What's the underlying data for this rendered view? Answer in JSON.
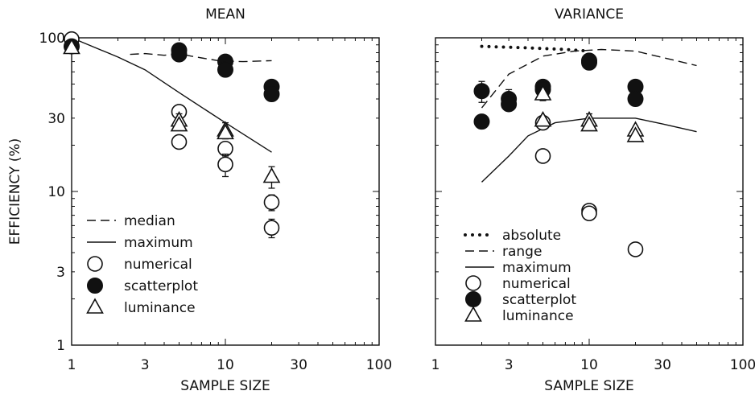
{
  "ylabel": "EFFICIENCY (%)",
  "chart_data": [
    {
      "type": "scatter",
      "title": "MEAN",
      "xlabel": "SAMPLE SIZE",
      "xscale": "log",
      "yscale": "log",
      "xlim": [
        1,
        100
      ],
      "ylim": [
        1,
        100
      ],
      "xticks": [
        "1",
        "3",
        "10",
        "30",
        "100"
      ],
      "yticks": [
        "1",
        "3",
        "10",
        "30",
        "100"
      ],
      "legend_position": "bottom-left",
      "legend": [
        {
          "label": "median",
          "style": "dashed-line"
        },
        {
          "label": "maximum",
          "style": "solid-line"
        },
        {
          "label": "numerical",
          "style": "open-circle"
        },
        {
          "label": "scatterplot",
          "style": "filled-circle"
        },
        {
          "label": "luminance",
          "style": "open-triangle"
        }
      ],
      "lines": [
        {
          "name": "median",
          "style": "dashed",
          "points": [
            [
              2.4,
              78
            ],
            [
              3,
              79
            ],
            [
              4,
              77
            ],
            [
              5,
              79
            ],
            [
              6,
              76
            ],
            [
              7,
              74
            ],
            [
              9,
              71
            ],
            [
              13,
              70
            ],
            [
              20,
              71
            ]
          ]
        },
        {
          "name": "maximum",
          "style": "solid",
          "points": [
            [
              1,
              100
            ],
            [
              2,
              75
            ],
            [
              3,
              62
            ],
            [
              5,
              44
            ],
            [
              10,
              28
            ],
            [
              20,
              18
            ]
          ]
        }
      ],
      "series": [
        {
          "name": "numerical",
          "marker": "open-circle",
          "points": [
            {
              "x": 1,
              "y": 98
            },
            {
              "x": 5,
              "y": 33,
              "err": 2.5
            },
            {
              "x": 5,
              "y": 21,
              "err": 2
            },
            {
              "x": 10,
              "y": 19,
              "err": 2
            },
            {
              "x": 10,
              "y": 15,
              "err": 2.5
            },
            {
              "x": 20,
              "y": 8.5,
              "err": 1
            },
            {
              "x": 20,
              "y": 5.8,
              "err": 0.8
            }
          ]
        },
        {
          "name": "scatterplot",
          "marker": "filled-circle",
          "points": [
            {
              "x": 1,
              "y": 88
            },
            {
              "x": 5,
              "y": 83,
              "err": 3
            },
            {
              "x": 5,
              "y": 78
            },
            {
              "x": 10,
              "y": 70,
              "err": 4
            },
            {
              "x": 10,
              "y": 62,
              "err": 5
            },
            {
              "x": 20,
              "y": 48
            },
            {
              "x": 20,
              "y": 43
            }
          ]
        },
        {
          "name": "luminance",
          "marker": "open-triangle",
          "points": [
            {
              "x": 1,
              "y": 86
            },
            {
              "x": 5,
              "y": 29,
              "err": 3
            },
            {
              "x": 5,
              "y": 27
            },
            {
              "x": 10,
              "y": 25,
              "err": 3
            },
            {
              "x": 10,
              "y": 24
            },
            {
              "x": 20,
              "y": 12.5,
              "err": 2
            }
          ]
        }
      ]
    },
    {
      "type": "scatter",
      "title": "VARIANCE",
      "xlabel": "SAMPLE SIZE",
      "xscale": "log",
      "yscale": "log",
      "xlim": [
        1,
        100
      ],
      "ylim": [
        1,
        100
      ],
      "xticks": [
        "1",
        "3",
        "10",
        "30",
        "100"
      ],
      "yticks": [],
      "legend_position": "bottom-left",
      "legend": [
        {
          "label": "absolute",
          "style": "dotted-line"
        },
        {
          "label": "range",
          "style": "dashed-line"
        },
        {
          "label": "maximum",
          "style": "solid-line"
        },
        {
          "label": "numerical",
          "style": "open-circle"
        },
        {
          "label": "scatterplot",
          "style": "filled-circle"
        },
        {
          "label": "luminance",
          "style": "open-triangle"
        }
      ],
      "lines": [
        {
          "name": "absolute",
          "style": "dotted",
          "points": [
            [
              2,
              88
            ],
            [
              4,
              86
            ],
            [
              7,
              84
            ],
            [
              10,
              82
            ]
          ]
        },
        {
          "name": "range",
          "style": "dashed",
          "points": [
            [
              2,
              35
            ],
            [
              3,
              58
            ],
            [
              5,
              76
            ],
            [
              8,
              82
            ],
            [
              12,
              84
            ],
            [
              20,
              82
            ],
            [
              50,
              66
            ]
          ]
        },
        {
          "name": "maximum",
          "style": "solid",
          "points": [
            [
              2,
              11.5
            ],
            [
              3,
              17
            ],
            [
              4,
              23
            ],
            [
              6,
              28
            ],
            [
              10,
              30
            ],
            [
              20,
              30
            ],
            [
              30,
              27.5
            ],
            [
              50,
              24.5
            ]
          ]
        }
      ],
      "series": [
        {
          "name": "numerical",
          "marker": "open-circle",
          "points": [
            {
              "x": 5,
              "y": 28
            },
            {
              "x": 5,
              "y": 17
            },
            {
              "x": 10,
              "y": 7.5,
              "err": 0.7
            },
            {
              "x": 10,
              "y": 7.2
            },
            {
              "x": 20,
              "y": 4.2
            }
          ]
        },
        {
          "name": "scatterplot",
          "marker": "filled-circle",
          "points": [
            {
              "x": 2,
              "y": 45,
              "err": 7
            },
            {
              "x": 2,
              "y": 28.5
            },
            {
              "x": 3,
              "y": 40,
              "err": 6
            },
            {
              "x": 3,
              "y": 37
            },
            {
              "x": 5,
              "y": 48,
              "err": 4
            },
            {
              "x": 5,
              "y": 46
            },
            {
              "x": 10,
              "y": 71
            },
            {
              "x": 10,
              "y": 69
            },
            {
              "x": 20,
              "y": 48
            },
            {
              "x": 20,
              "y": 40
            }
          ]
        },
        {
          "name": "luminance",
          "marker": "open-triangle",
          "points": [
            {
              "x": 5,
              "y": 43,
              "err": 4
            },
            {
              "x": 5,
              "y": 29
            },
            {
              "x": 10,
              "y": 29,
              "err": 3
            },
            {
              "x": 10,
              "y": 27
            },
            {
              "x": 20,
              "y": 25
            },
            {
              "x": 20,
              "y": 23
            }
          ]
        }
      ]
    }
  ]
}
